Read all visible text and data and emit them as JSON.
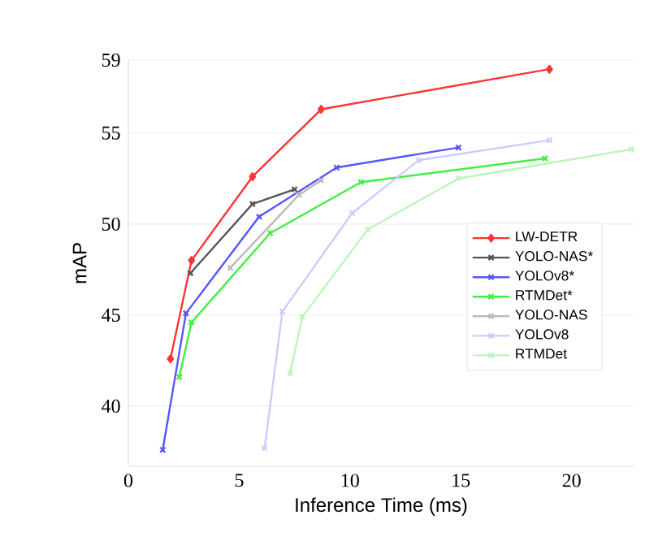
{
  "chart_data": {
    "type": "line",
    "xlabel": "Inference Time (ms)",
    "ylabel": "mAP",
    "xlim": [
      0,
      22.8
    ],
    "ylim": [
      36.7,
      59
    ],
    "xticks": [
      0,
      5,
      10,
      15,
      20
    ],
    "yticks": [
      40,
      45,
      50,
      55,
      59
    ],
    "grid": "y",
    "legend": "right",
    "line_style": "solid",
    "series": [
      {
        "name": "LW-DETR",
        "color": "#ff3333",
        "marker": "diamond",
        "x": [
          1.9,
          2.85,
          5.6,
          8.7,
          19.0
        ],
        "values": [
          42.6,
          48.0,
          52.6,
          56.3,
          58.5
        ]
      },
      {
        "name": "YOLO-NAS*",
        "color": "#555555",
        "marker": "cross",
        "x": [
          2.8,
          5.6,
          7.5
        ],
        "values": [
          47.3,
          51.1,
          51.9
        ]
      },
      {
        "name": "YOLOv8*",
        "color": "#5555ff",
        "marker": "cross",
        "x": [
          1.55,
          2.6,
          5.9,
          9.4,
          14.9
        ],
        "values": [
          37.6,
          45.1,
          50.4,
          53.1,
          54.2
        ]
      },
      {
        "name": "RTMDet*",
        "color": "#44ee44",
        "marker": "cross",
        "x": [
          2.3,
          2.85,
          6.4,
          10.5,
          18.8
        ],
        "values": [
          41.6,
          44.6,
          49.5,
          52.3,
          53.6
        ]
      },
      {
        "name": "YOLO-NAS",
        "color": "#bbbbbb",
        "marker": "cross",
        "x": [
          4.6,
          7.7,
          8.7
        ],
        "values": [
          47.6,
          51.6,
          52.4
        ]
      },
      {
        "name": "YOLOv8",
        "color": "#ccccff",
        "marker": "cross",
        "x": [
          6.15,
          6.95,
          10.1,
          13.1,
          19.0
        ],
        "values": [
          37.7,
          45.2,
          50.6,
          53.5,
          54.6
        ]
      },
      {
        "name": "RTMDet",
        "color": "#bbf5bb",
        "marker": "cross",
        "x": [
          7.3,
          7.85,
          10.8,
          14.9,
          22.7
        ],
        "values": [
          41.8,
          44.9,
          49.7,
          52.5,
          54.1
        ]
      }
    ]
  }
}
